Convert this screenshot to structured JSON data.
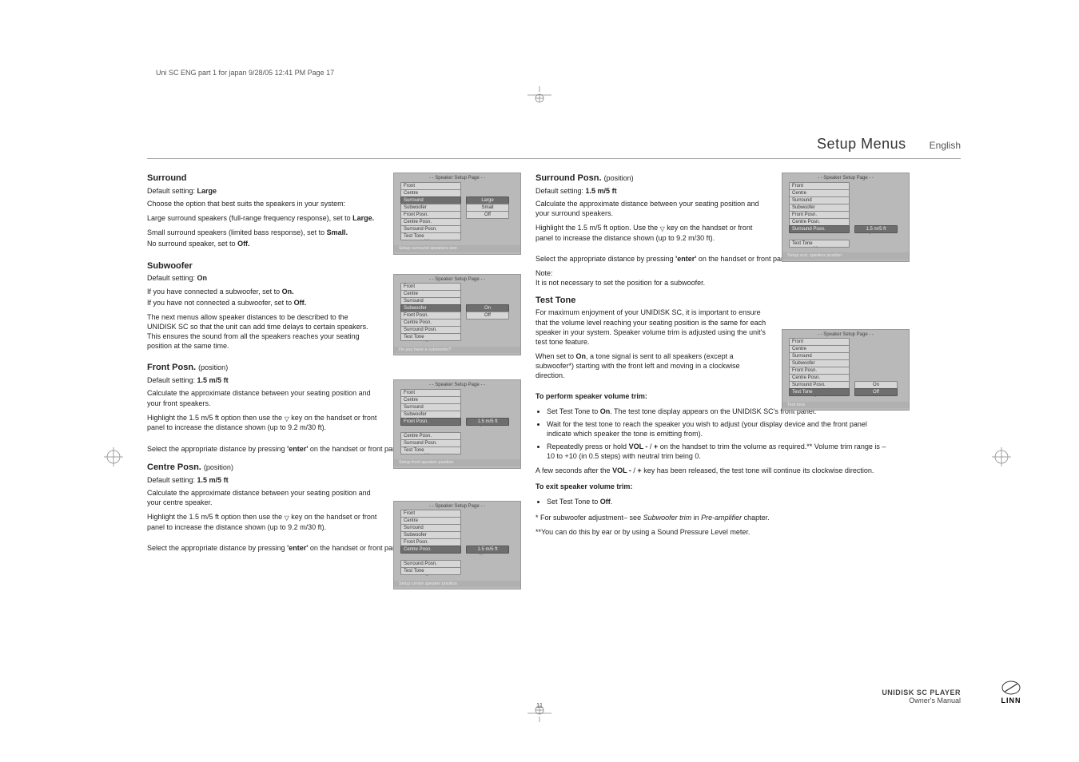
{
  "header_line": "Uni SC ENG part 1 for japan  9/28/05  12:41 PM  Page 17",
  "title": {
    "main": "Setup Menus",
    "lang": "English"
  },
  "page_number": "11",
  "footer": {
    "line1": "UNIDISK SC PLAYER",
    "line2": "Owner's Manual",
    "logo": "LINN"
  },
  "surround": {
    "h": "Surround",
    "def": "Default setting: Large",
    "p1": "Choose the option that best suits the speakers in your system:",
    "p2": "Large surround speakers (full-range frequency response), set to Large.",
    "p3": "Small surround speakers (limited bass response), set to Small.",
    "p4": "No surround speaker, set to Off."
  },
  "subwoofer": {
    "h": "Subwoofer",
    "def": "Default setting: On",
    "p1": "If you have connected a subwoofer, set to On.",
    "p2": "If you have not connected a subwoofer, set to Off.",
    "p3": "The next menus allow speaker distances to be described to the UNIDISK SC so that the unit can add time delays to certain speakers. This ensures the sound from all the speakers reaches your seating position at the same time."
  },
  "frontposn": {
    "h": "Front Posn.",
    "hsub": "(position)",
    "def": "Default setting: 1.5 m/5 ft",
    "p1": "Calculate the approximate distance between your seating position and your front speakers.",
    "p2a": "Highlight the 1.5 m/5 ft option then use the ",
    "p2b": " key on the handset or front panel to increase the distance shown (up to 9.2 m/30 ft).",
    "p3": "Select the appropriate distance by pressing 'enter' on the handset or front panel."
  },
  "centreposn": {
    "h": "Centre Posn.",
    "hsub": "(position)",
    "def": "Default setting: 1.5 m/5 ft",
    "p1": "Calculate the approximate distance between your seating position and your centre speaker.",
    "p2a": "Highlight the 1.5 m/5 ft option then use the ",
    "p2b": " key on the handset or front panel to increase the distance shown (up to 9.2 m/30 ft).",
    "p3": "Select the appropriate distance by pressing 'enter' on the handset or front panel."
  },
  "surrposn": {
    "h": "Surround Posn.",
    "hsub": "(position)",
    "def": "Default setting: 1.5 m/5 ft",
    "p1": "Calculate the approximate distance between your seating position and your surround speakers.",
    "p2a": "Highlight the 1.5 m/5 ft option. Use the ",
    "p2b": " key on the handset or front panel to increase the distance shown (up to 9.2 m/30 ft).",
    "p3": "Select the appropriate distance by pressing 'enter' on the handset or front panel.",
    "note_h": "Note:",
    "note": "It is not necessary to set the position for a subwoofer."
  },
  "testtone": {
    "h": "Test Tone",
    "p1": "For maximum enjoyment of your UNIDISK SC, it is important to ensure that the volume level reaching your seating position is the same for each speaker in your system. Speaker volume trim is adjusted using the unit's test tone feature.",
    "p2": "When set to On, a tone signal is sent to all speakers (except a subwoofer*) starting with the front left and moving in a clockwise direction.",
    "perf_h": "To perform speaker volume trim:",
    "b1": "Set Test Tone to On. The test tone display appears on the UNIDISK SC's front panel.",
    "b2": "Wait for the test tone to reach the speaker you wish to adjust (your display device and the front panel indicate which speaker the tone is emitting from).",
    "b3": "Repeatedly press or hold VOL - / + on the handset to trim the volume as required.** Volume trim range is –10 to +10 (in 0.5 steps) with neutral trim being 0.",
    "p3": "A few seconds after the VOL - / + key has been released, the test tone will continue its clockwise direction.",
    "exit_h": "To exit speaker volume trim:",
    "b4": "Set Test Tone to Off.",
    "fn1": "* For subwoofer adjustment– see Subwoofer trim in Pre-amplifier chapter.",
    "fn2": "**You can do this by ear or by using a Sound Pressure Level meter."
  },
  "menu_common": {
    "title": "- -  Speaker Setup Page  - -",
    "items": [
      "Front",
      "Centre",
      "Surround",
      "Subwoofer",
      "Front Posn.",
      "Centre Posn.",
      "Surround Posn.",
      "Test Tone"
    ]
  },
  "menus": {
    "surround": {
      "hl_idx": 2,
      "opts": {
        "2": "Large",
        "3": "Small",
        "4": "Off"
      },
      "sel": "2",
      "footer": "Setup surround speakers size"
    },
    "subwoofer": {
      "hl_idx": 3,
      "opts": {
        "3": "On",
        "4": "Off"
      },
      "sel": "3",
      "footer": "Do you have a subwoofer?"
    },
    "frontposn": {
      "hl_idx": 4,
      "opts": {
        "4": "1.5 m/5 ft"
      },
      "sel": "4",
      "chev": true,
      "footer": "Setup front speaker position"
    },
    "centreposn": {
      "hl_idx": 5,
      "opts": {
        "5": "1.5 m/5 ft"
      },
      "sel": "5",
      "chev": true,
      "footer": "Setup centre speaker position"
    },
    "surrposn": {
      "hl_idx": 6,
      "opts": {
        "6": "1.5 m/5 ft"
      },
      "sel": "6",
      "chev": true,
      "footer": "Setup surr. speaker position"
    },
    "testtone": {
      "hl_idx": 7,
      "opts": {
        "6": "On",
        "7": "Off"
      },
      "sel": "7",
      "footer": "Test tone"
    }
  }
}
